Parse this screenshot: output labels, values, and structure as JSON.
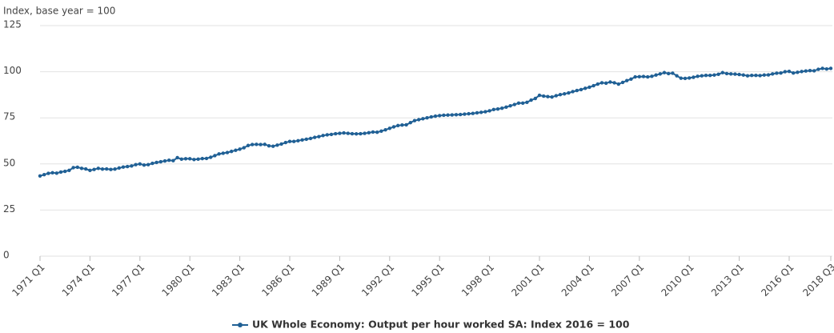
{
  "chart_data": {
    "type": "line",
    "y_axis_label": "Index, base year = 100",
    "categories": [
      "1971 Q1",
      null,
      null,
      null,
      null,
      null,
      null,
      null,
      null,
      null,
      null,
      null,
      "1974 Q1",
      null,
      null,
      null,
      null,
      null,
      null,
      null,
      null,
      null,
      null,
      null,
      "1977 Q1",
      null,
      null,
      null,
      null,
      null,
      null,
      null,
      null,
      null,
      null,
      null,
      "1980 Q1",
      null,
      null,
      null,
      null,
      null,
      null,
      null,
      null,
      null,
      null,
      null,
      "1983 Q1",
      null,
      null,
      null,
      null,
      null,
      null,
      null,
      null,
      null,
      null,
      null,
      "1986 Q1",
      null,
      null,
      null,
      null,
      null,
      null,
      null,
      null,
      null,
      null,
      null,
      "1989 Q1",
      null,
      null,
      null,
      null,
      null,
      null,
      null,
      null,
      null,
      null,
      null,
      "1992 Q1",
      null,
      null,
      null,
      null,
      null,
      null,
      null,
      null,
      null,
      null,
      null,
      "1995 Q1",
      null,
      null,
      null,
      null,
      null,
      null,
      null,
      null,
      null,
      null,
      null,
      "1998 Q1",
      null,
      null,
      null,
      null,
      null,
      null,
      null,
      null,
      null,
      null,
      null,
      "2001 Q1",
      null,
      null,
      null,
      null,
      null,
      null,
      null,
      null,
      null,
      null,
      null,
      "2004 Q1",
      null,
      null,
      null,
      null,
      null,
      null,
      null,
      null,
      null,
      null,
      null,
      "2007 Q1",
      null,
      null,
      null,
      null,
      null,
      null,
      null,
      null,
      null,
      null,
      null,
      "2010 Q1",
      null,
      null,
      null,
      null,
      null,
      null,
      null,
      null,
      null,
      null,
      null,
      "2013 Q1",
      null,
      null,
      null,
      null,
      null,
      null,
      null,
      null,
      null,
      null,
      null,
      "2016 Q1",
      null,
      null,
      null,
      null,
      null,
      null,
      null,
      null,
      null,
      "2018 Q3"
    ],
    "series": [
      {
        "name": "UK Whole Economy: Output per hour worked SA: Index 2016 = 100",
        "color": "#206095",
        "values": [
          43.5,
          44.2,
          44.9,
          45.2,
          45.0,
          45.6,
          46.0,
          46.5,
          48.0,
          48.2,
          47.6,
          47.3,
          46.5,
          47.0,
          47.6,
          47.2,
          47.3,
          47.0,
          47.2,
          47.8,
          48.3,
          48.6,
          48.9,
          49.6,
          50.0,
          49.4,
          49.6,
          50.3,
          50.8,
          51.2,
          51.6,
          52.0,
          51.8,
          53.4,
          52.6,
          52.8,
          52.8,
          52.4,
          52.6,
          52.9,
          53.0,
          53.6,
          54.5,
          55.4,
          55.8,
          56.2,
          56.8,
          57.4,
          58.0,
          58.8,
          60.0,
          60.5,
          60.6,
          60.5,
          60.6,
          59.8,
          59.6,
          60.2,
          60.8,
          61.6,
          62.2,
          62.2,
          62.6,
          63.0,
          63.4,
          63.8,
          64.4,
          64.8,
          65.4,
          65.8,
          66.0,
          66.4,
          66.6,
          66.8,
          66.6,
          66.4,
          66.3,
          66.4,
          66.6,
          66.9,
          67.3,
          67.2,
          67.8,
          68.5,
          69.3,
          70.1,
          70.8,
          71.1,
          71.2,
          72.4,
          73.5,
          74.0,
          74.5,
          75.0,
          75.5,
          75.9,
          76.2,
          76.4,
          76.5,
          76.6,
          76.7,
          76.8,
          77.0,
          77.2,
          77.4,
          77.7,
          78.0,
          78.3,
          78.8,
          79.5,
          79.8,
          80.2,
          80.8,
          81.5,
          82.2,
          83.0,
          83.0,
          83.4,
          84.6,
          85.5,
          87.2,
          86.8,
          86.5,
          86.3,
          87.0,
          87.6,
          88.0,
          88.5,
          89.2,
          89.8,
          90.3,
          91.0,
          91.6,
          92.4,
          93.3,
          94.0,
          93.8,
          94.4,
          94.0,
          93.3,
          94.2,
          95.2,
          96.0,
          97.2,
          97.3,
          97.4,
          97.2,
          97.5,
          98.2,
          98.8,
          99.5,
          99.0,
          99.2,
          97.8,
          96.5,
          96.4,
          96.6,
          97.0,
          97.5,
          97.8,
          98.0,
          98.0,
          98.2,
          98.6,
          99.5,
          99.0,
          98.8,
          98.7,
          98.5,
          98.2,
          97.8,
          98.0,
          98.0,
          97.9,
          98.2,
          98.3,
          98.8,
          99.2,
          99.3,
          100.0,
          100.2,
          99.3,
          99.7,
          100.1,
          100.4,
          100.6,
          100.5,
          101.3,
          101.8,
          101.5,
          101.8
        ]
      }
    ],
    "ylim": [
      0,
      125
    ],
    "yticks": [
      0,
      25,
      50,
      75,
      100,
      125
    ],
    "grid": true,
    "legend": "bottom"
  }
}
